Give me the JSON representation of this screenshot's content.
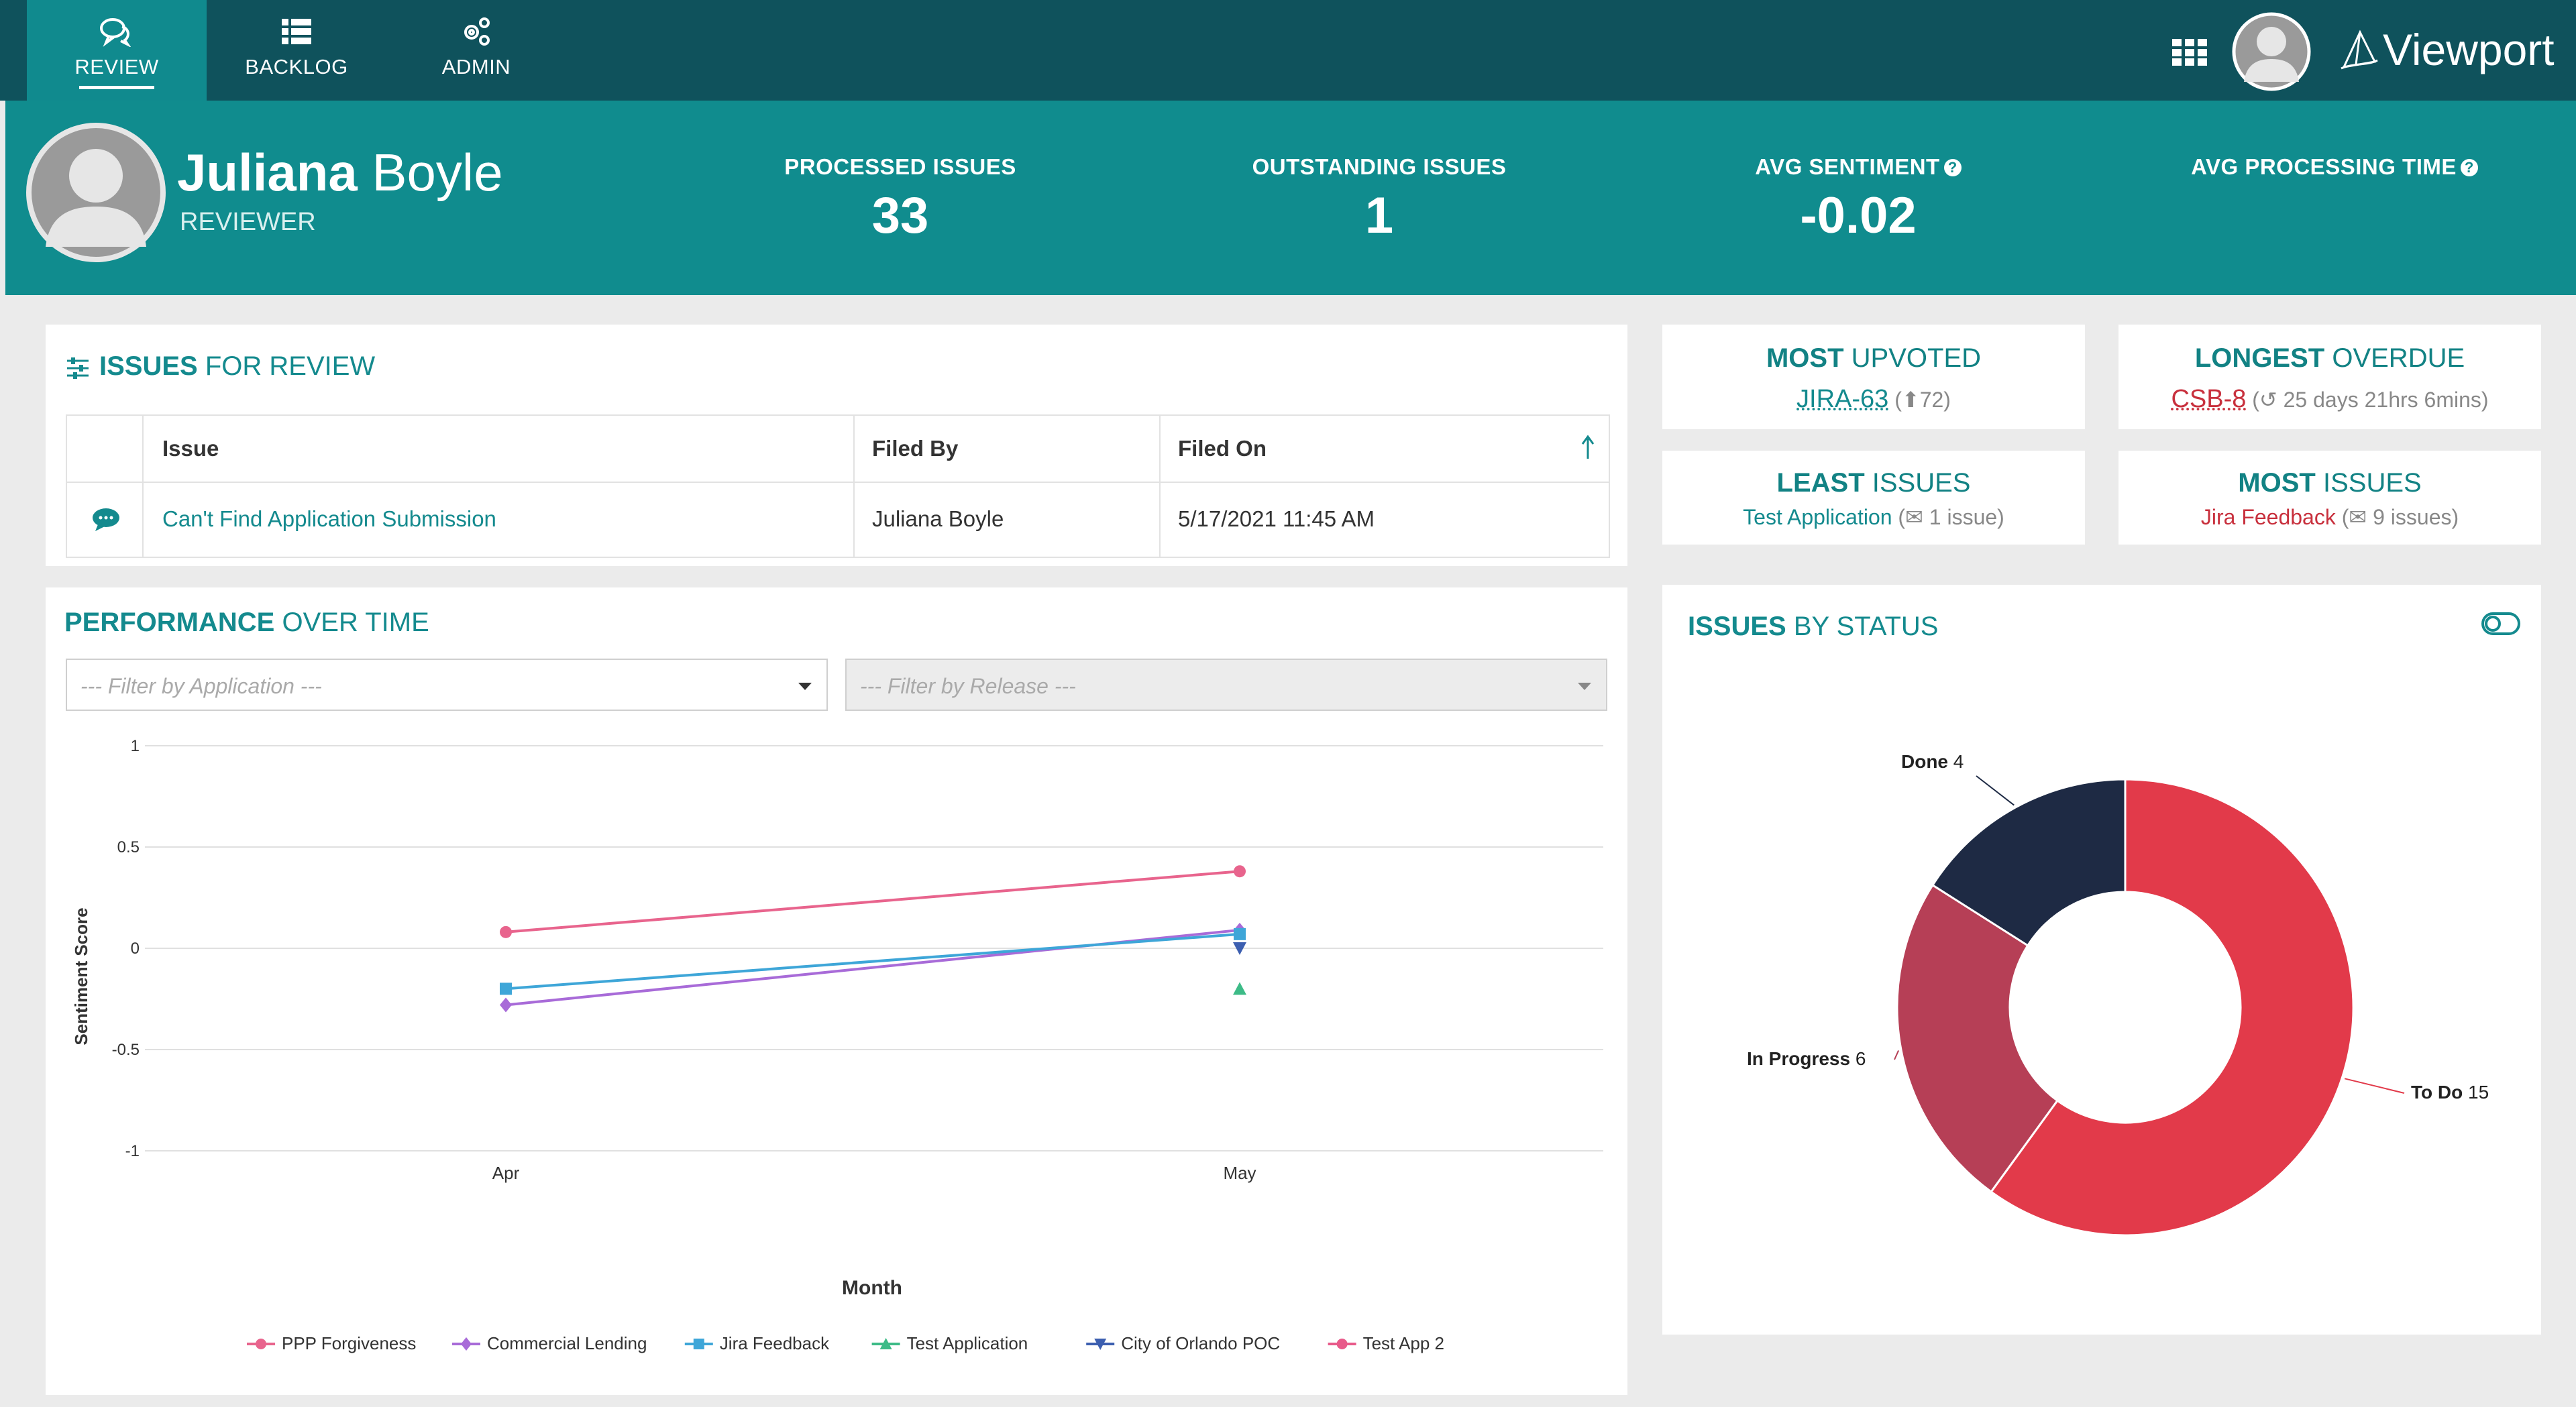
{
  "nav": {
    "tabs": [
      {
        "label": "REVIEW",
        "icon": "chat-icon",
        "active": true
      },
      {
        "label": "BACKLOG",
        "icon": "list-icon",
        "active": false
      },
      {
        "label": "ADMIN",
        "icon": "gears-icon",
        "active": false
      }
    ],
    "brand": "Viewport"
  },
  "profile": {
    "first_name": "Juliana",
    "last_name": "Boyle",
    "role": "REVIEWER"
  },
  "stats": [
    {
      "label": "PROCESSED ISSUES",
      "value": "33"
    },
    {
      "label": "OUTSTANDING ISSUES",
      "value": "1"
    },
    {
      "label": "AVG SENTIMENT",
      "value": "-0.02",
      "help": true
    },
    {
      "label": "AVG PROCESSING TIME",
      "value": "",
      "help": true
    }
  ],
  "issues_for_review": {
    "title_strong": "ISSUES",
    "title_rest": "FOR REVIEW",
    "columns": [
      "Issue",
      "Filed By",
      "Filed On"
    ],
    "rows": [
      {
        "issue": "Can't Find Application Submission",
        "filed_by": "Juliana Boyle",
        "filed_on": "5/17/2021 11:45 AM"
      }
    ]
  },
  "rankings": {
    "most_upvoted": {
      "strong": "MOST",
      "rest": "UPVOTED",
      "link": "JIRA-63",
      "detail": "72"
    },
    "longest_overdue": {
      "strong": "LONGEST",
      "rest": "OVERDUE",
      "link": "CSB-8",
      "detail": "25 days 21hrs 6mins"
    },
    "least_issues": {
      "strong": "LEAST",
      "rest": "ISSUES",
      "link": "Test Application",
      "detail": "1 issue)"
    },
    "most_issues": {
      "strong": "MOST",
      "rest": "ISSUES",
      "link": "Jira Feedback",
      "detail": "9 issues)"
    }
  },
  "performance": {
    "title_strong": "PERFORMANCE",
    "title_rest": "OVER TIME",
    "filter_app_placeholder": "--- Filter by Application ---",
    "filter_release_placeholder": "--- Filter by Release ---"
  },
  "issues_by_status": {
    "title_strong": "ISSUES",
    "title_rest": "BY STATUS"
  },
  "chart_data": [
    {
      "type": "line",
      "title": "",
      "xlabel": "Month",
      "ylabel": "Sentiment Score",
      "categories": [
        "Apr",
        "May"
      ],
      "ylim": [
        -1,
        1
      ],
      "yticks": [
        "1",
        "0.5",
        "0",
        "-0.5",
        "-1"
      ],
      "grid": true,
      "legend_position": "bottom",
      "series": [
        {
          "name": "PPP Forgiveness",
          "color": "#e8648d",
          "marker": "circle",
          "values": [
            0.08,
            0.38
          ]
        },
        {
          "name": "Commercial Lending",
          "color": "#a86bd8",
          "marker": "diamond",
          "values": [
            -0.28,
            0.09
          ]
        },
        {
          "name": "Jira Feedback",
          "color": "#3ea6d8",
          "marker": "square",
          "values": [
            -0.2,
            0.07
          ]
        },
        {
          "name": "Test Application",
          "color": "#3dbb87",
          "marker": "triangle",
          "values": [
            null,
            -0.2
          ]
        },
        {
          "name": "City of Orlando POC",
          "color": "#3c5fb0",
          "marker": "triangle-down",
          "values": [
            null,
            0.0
          ]
        },
        {
          "name": "Test App 2",
          "color": "#e85a8a",
          "marker": "circle",
          "values": [
            null,
            null
          ]
        }
      ]
    },
    {
      "type": "pie",
      "title": "",
      "donut": true,
      "slices": [
        {
          "label": "To Do",
          "value": 15,
          "color": "#e23a4a"
        },
        {
          "label": "In Progress",
          "value": 6,
          "color": "#b63f56"
        },
        {
          "label": "Done",
          "value": 4,
          "color": "#1e2a44"
        }
      ]
    }
  ]
}
